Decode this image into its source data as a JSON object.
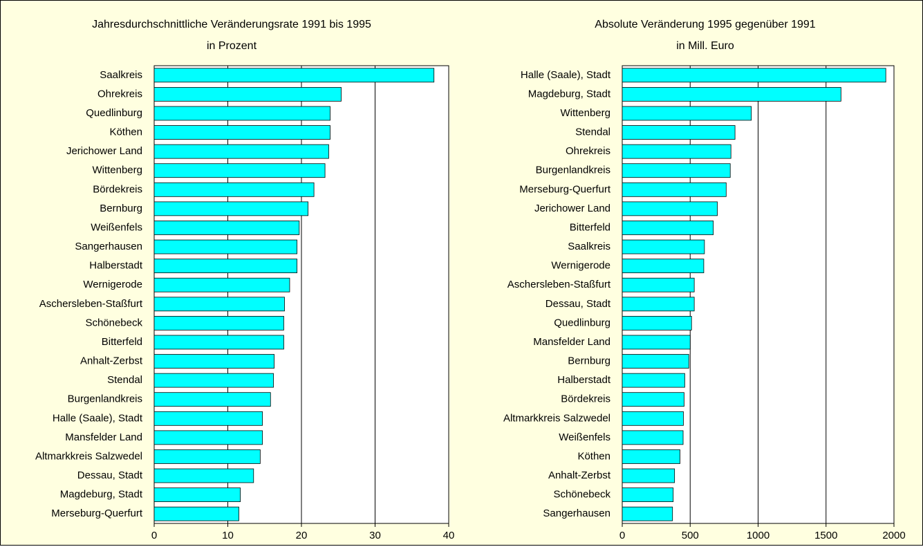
{
  "chart_data": [
    {
      "type": "bar",
      "orientation": "horizontal",
      "title": "Jahresdurchschnittliche Veränderungsrate 1991 bis 1995",
      "subtitle": "in Prozent",
      "categories": [
        "Saalkreis",
        "Ohrekreis",
        "Quedlinburg",
        "Köthen",
        "Jerichower Land",
        "Wittenberg",
        "Bördekreis",
        "Bernburg",
        "Weißenfels",
        "Sangerhausen",
        "Halberstadt",
        "Wernigerode",
        "Aschersleben-Staßfurt",
        "Schönebeck",
        "Bitterfeld",
        "Anhalt-Zerbst",
        "Stendal",
        "Burgenlandkreis",
        "Halle (Saale), Stadt",
        "Mansfelder Land",
        "Altmarkkreis Salzwedel",
        "Dessau, Stadt",
        "Magdeburg, Stadt",
        "Merseburg-Querfurt"
      ],
      "values": [
        38.0,
        25.4,
        23.9,
        23.9,
        23.7,
        23.2,
        21.7,
        20.9,
        19.7,
        19.4,
        19.4,
        18.4,
        17.7,
        17.6,
        17.6,
        16.3,
        16.2,
        15.8,
        14.7,
        14.7,
        14.4,
        13.5,
        11.7,
        11.5
      ],
      "color": "#00ffff",
      "xlim": [
        0,
        40
      ],
      "xticks": [
        0,
        10,
        20,
        30,
        40
      ],
      "grid": true
    },
    {
      "type": "bar",
      "orientation": "horizontal",
      "title": "Absolute Veränderung 1995 gegenüber 1991",
      "subtitle": "in Mill. Euro",
      "categories": [
        "Halle (Saale), Stadt",
        "Magdeburg, Stadt",
        "Wittenberg",
        "Stendal",
        "Ohrekreis",
        "Burgenlandkreis",
        "Merseburg-Querfurt",
        "Jerichower Land",
        "Bitterfeld",
        "Saalkreis",
        "Wernigerode",
        "Aschersleben-Staßfurt",
        "Dessau, Stadt",
        "Quedlinburg",
        "Mansfelder Land",
        "Bernburg",
        "Halberstadt",
        "Bördekreis",
        "Altmarkkreis Salzwedel",
        "Weißenfels",
        "Köthen",
        "Anhalt-Zerbst",
        "Schönebeck",
        "Sangerhausen"
      ],
      "values": [
        1940,
        1610,
        950,
        830,
        800,
        795,
        765,
        700,
        670,
        605,
        600,
        530,
        530,
        510,
        500,
        490,
        460,
        455,
        450,
        448,
        425,
        385,
        375,
        370
      ],
      "color": "#00ffff",
      "xlim": [
        0,
        2000
      ],
      "xticks": [
        0,
        500,
        1000,
        1500,
        2000
      ],
      "grid": true
    }
  ]
}
